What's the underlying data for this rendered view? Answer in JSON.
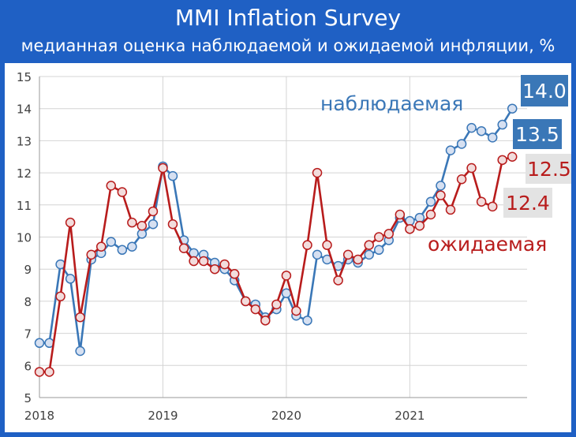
{
  "chart_data": {
    "type": "line",
    "title": "MMI Inflation Survey",
    "subtitle": "медианная оценка наблюдаемой и ожидаемой инфляции, %",
    "ylim": [
      5,
      15
    ],
    "yticks": [
      5,
      6,
      7,
      8,
      9,
      10,
      11,
      12,
      13,
      14,
      15
    ],
    "xlim": [
      2018.0,
      2021.95
    ],
    "xticks": [
      "2018",
      "2019",
      "2020",
      "2021"
    ],
    "grid": "horizontal and vertical",
    "series": [
      {
        "name": "наблюдаемая",
        "color": "#3a77b7",
        "marker_fill": "#d6e0f1",
        "end_label": "14.0",
        "points": [
          [
            2018.0,
            6.7
          ],
          [
            2018.08,
            6.7
          ],
          [
            2018.17,
            9.15
          ],
          [
            2018.25,
            8.7
          ],
          [
            2018.33,
            6.45
          ],
          [
            2018.42,
            9.3
          ],
          [
            2018.5,
            9.5
          ],
          [
            2018.58,
            9.85
          ],
          [
            2018.67,
            9.6
          ],
          [
            2018.75,
            9.7
          ],
          [
            2018.83,
            10.1
          ],
          [
            2018.92,
            10.4
          ],
          [
            2019.0,
            12.2
          ],
          [
            2019.08,
            11.9
          ],
          [
            2019.17,
            9.9
          ],
          [
            2019.25,
            9.5
          ],
          [
            2019.33,
            9.45
          ],
          [
            2019.42,
            9.2
          ],
          [
            2019.5,
            9.0
          ],
          [
            2019.58,
            8.65
          ],
          [
            2019.67,
            8.0
          ],
          [
            2019.75,
            7.9
          ],
          [
            2019.83,
            7.5
          ],
          [
            2019.92,
            7.75
          ],
          [
            2020.0,
            8.25
          ],
          [
            2020.08,
            7.55
          ],
          [
            2020.17,
            7.4
          ],
          [
            2020.25,
            9.45
          ],
          [
            2020.33,
            9.3
          ],
          [
            2020.42,
            9.1
          ],
          [
            2020.5,
            9.3
          ],
          [
            2020.58,
            9.2
          ],
          [
            2020.67,
            9.45
          ],
          [
            2020.75,
            9.6
          ],
          [
            2020.83,
            9.9
          ],
          [
            2020.92,
            10.6
          ],
          [
            2021.0,
            10.5
          ],
          [
            2021.08,
            10.6
          ],
          [
            2021.17,
            11.1
          ],
          [
            2021.25,
            11.6
          ],
          [
            2021.33,
            12.7
          ],
          [
            2021.42,
            12.9
          ],
          [
            2021.5,
            13.4
          ],
          [
            2021.58,
            13.3
          ],
          [
            2021.67,
            13.1
          ],
          [
            2021.75,
            13.5
          ],
          [
            2021.83,
            14.0
          ]
        ]
      },
      {
        "name": "ожидаемая",
        "color": "#b81c1c",
        "marker_fill": "#f2dcdc",
        "end_label": "12.5",
        "points": [
          [
            2018.0,
            5.8
          ],
          [
            2018.08,
            5.8
          ],
          [
            2018.17,
            8.15
          ],
          [
            2018.25,
            10.45
          ],
          [
            2018.33,
            7.5
          ],
          [
            2018.42,
            9.45
          ],
          [
            2018.5,
            9.7
          ],
          [
            2018.58,
            11.6
          ],
          [
            2018.67,
            11.4
          ],
          [
            2018.75,
            10.45
          ],
          [
            2018.83,
            10.35
          ],
          [
            2018.92,
            10.8
          ],
          [
            2019.0,
            12.15
          ],
          [
            2019.08,
            10.4
          ],
          [
            2019.17,
            9.65
          ],
          [
            2019.25,
            9.25
          ],
          [
            2019.33,
            9.25
          ],
          [
            2019.42,
            9.0
          ],
          [
            2019.5,
            9.15
          ],
          [
            2019.58,
            8.85
          ],
          [
            2019.67,
            8.0
          ],
          [
            2019.75,
            7.75
          ],
          [
            2019.83,
            7.4
          ],
          [
            2019.92,
            7.9
          ],
          [
            2020.0,
            8.8
          ],
          [
            2020.08,
            7.7
          ],
          [
            2020.17,
            9.75
          ],
          [
            2020.25,
            12.0
          ],
          [
            2020.33,
            9.75
          ],
          [
            2020.42,
            8.65
          ],
          [
            2020.5,
            9.45
          ],
          [
            2020.58,
            9.3
          ],
          [
            2020.67,
            9.75
          ],
          [
            2020.75,
            10.0
          ],
          [
            2020.83,
            10.1
          ],
          [
            2020.92,
            10.7
          ],
          [
            2021.0,
            10.25
          ],
          [
            2021.08,
            10.35
          ],
          [
            2021.17,
            10.7
          ],
          [
            2021.25,
            11.3
          ],
          [
            2021.33,
            10.85
          ],
          [
            2021.42,
            11.8
          ],
          [
            2021.5,
            12.15
          ],
          [
            2021.58,
            11.1
          ],
          [
            2021.67,
            10.95
          ],
          [
            2021.75,
            12.4
          ],
          [
            2021.83,
            12.5
          ]
        ]
      }
    ],
    "value_boxes": [
      {
        "text": "14.0",
        "series": "наблюдаемая"
      },
      {
        "text": "13.5",
        "series": "наблюдаемая"
      },
      {
        "text": "12.5",
        "series": "ожидаемая"
      },
      {
        "text": "12.4",
        "series": "ожидаемая"
      }
    ],
    "colors": {
      "frame": "#1f60c4",
      "grid": "#d4d4d4",
      "observed_box": "#3a77b7",
      "expected_box": "#e3e3e3"
    }
  }
}
